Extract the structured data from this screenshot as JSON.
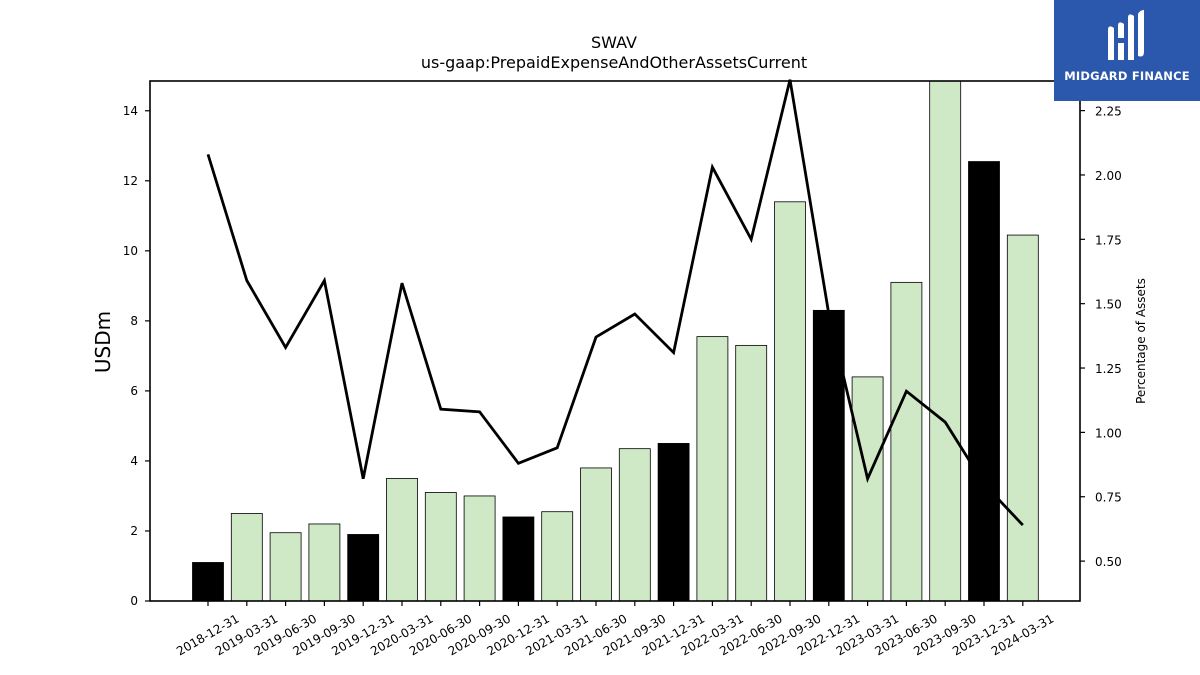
{
  "chart_data": {
    "type": "bar",
    "title": "SWAV",
    "subtitle": "us-gaap:PrepaidExpenseAndOtherAssetsCurrent",
    "ylabel": "USDm",
    "ylabel_right": "Percentage of Assets",
    "ylim": [
      0,
      14.85
    ],
    "ylim_right": [
      0.345,
      2.365
    ],
    "yticks": [
      0,
      2,
      4,
      6,
      8,
      10,
      12,
      14
    ],
    "yticks_right": [
      "0.50",
      "0.75",
      "1.00",
      "1.25",
      "1.50",
      "1.75",
      "2.00",
      "2.25"
    ],
    "categories": [
      "2018-12-31",
      "2019-03-31",
      "2019-06-30",
      "2019-09-30",
      "2019-12-31",
      "2020-03-31",
      "2020-06-30",
      "2020-09-30",
      "2020-12-31",
      "2021-03-31",
      "2021-06-30",
      "2021-09-30",
      "2021-12-31",
      "2022-03-31",
      "2022-06-30",
      "2022-09-30",
      "2022-12-31",
      "2023-03-31",
      "2023-06-30",
      "2023-09-30",
      "2023-12-31",
      "2024-03-31"
    ],
    "series": [
      {
        "type": "bar",
        "values": [
          1.1,
          2.5,
          1.95,
          2.2,
          1.9,
          3.5,
          3.1,
          3.0,
          2.4,
          2.55,
          3.8,
          4.35,
          4.5,
          7.55,
          7.3,
          11.4,
          8.3,
          6.4,
          9.1,
          14.85,
          12.55,
          10.45
        ]
      },
      {
        "type": "line",
        "axis": "right",
        "values": [
          2.08,
          1.59,
          1.33,
          1.59,
          0.82,
          1.58,
          1.09,
          1.08,
          0.88,
          0.94,
          1.37,
          1.46,
          1.31,
          2.03,
          1.75,
          2.37,
          1.46,
          0.82,
          1.16,
          1.04,
          0.8,
          0.64
        ]
      }
    ],
    "bar_colors": {
      "year_end": "#000000",
      "quarter": "#cfe9c7"
    },
    "line_color": "#000000"
  },
  "logo": {
    "text": "MIDGARD FINANCE",
    "background": "#2b57ad"
  }
}
